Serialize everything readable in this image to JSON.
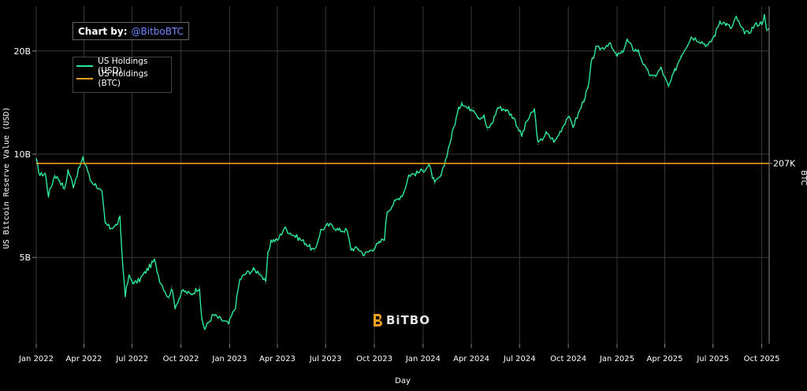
{
  "credit": {
    "label": "Chart by:",
    "handle": "@BitboBTC"
  },
  "brand": {
    "name": "BiTBO",
    "accent_color": "#f0a020"
  },
  "chart_data": {
    "type": "line",
    "title": "",
    "xlabel": "Day",
    "ylabel": "US Bitcoin Reserve Value (USD)",
    "y2label": "BTC",
    "y_scale": "log",
    "ylim": [
      2.8,
      27
    ],
    "xlim": [
      "2022-01-01",
      "2025-10-15"
    ],
    "grid": true,
    "legend_position": "top-left",
    "x_ticks": [
      "Jan 2022",
      "Apr 2022",
      "Jul 2022",
      "Oct 2022",
      "Jan 2023",
      "Apr 2023",
      "Jul 2023",
      "Oct 2023",
      "Jan 2024",
      "Apr 2024",
      "Jul 2024",
      "Oct 2024",
      "Jan 2025",
      "Apr 2025",
      "Jul 2025",
      "Oct 2025"
    ],
    "y_ticks": [
      {
        "value": 5,
        "label": "5B"
      },
      {
        "value": 10,
        "label": "10B"
      },
      {
        "value": 20,
        "label": "20B"
      }
    ],
    "y2_ticks": [
      {
        "value": 9.4,
        "label": "207K"
      }
    ],
    "series": [
      {
        "name": "US Holdings (USD)",
        "color": "#2ee89a",
        "unit": "billion USD",
        "points": [
          [
            "2022-01-01",
            9.6
          ],
          [
            "2022-01-08",
            8.7
          ],
          [
            "2022-01-18",
            8.8
          ],
          [
            "2022-01-24",
            7.6
          ],
          [
            "2022-02-05",
            8.7
          ],
          [
            "2022-02-14",
            8.4
          ],
          [
            "2022-02-24",
            7.9
          ],
          [
            "2022-03-02",
            9.0
          ],
          [
            "2022-03-12",
            8.1
          ],
          [
            "2022-03-24",
            9.2
          ],
          [
            "2022-03-30",
            9.7
          ],
          [
            "2022-04-06",
            9.2
          ],
          [
            "2022-04-13",
            8.4
          ],
          [
            "2022-04-25",
            8.1
          ],
          [
            "2022-05-05",
            7.7
          ],
          [
            "2022-05-11",
            6.3
          ],
          [
            "2022-05-20",
            6.1
          ],
          [
            "2022-06-01",
            6.2
          ],
          [
            "2022-06-08",
            6.5
          ],
          [
            "2022-06-13",
            4.8
          ],
          [
            "2022-06-18",
            3.9
          ],
          [
            "2022-06-25",
            4.4
          ],
          [
            "2022-07-05",
            4.2
          ],
          [
            "2022-07-15",
            4.3
          ],
          [
            "2022-07-29",
            4.6
          ],
          [
            "2022-08-12",
            4.9
          ],
          [
            "2022-08-22",
            4.3
          ],
          [
            "2022-09-08",
            3.8
          ],
          [
            "2022-09-13",
            4.1
          ],
          [
            "2022-09-20",
            3.6
          ],
          [
            "2022-10-05",
            4.0
          ],
          [
            "2022-10-20",
            3.9
          ],
          [
            "2022-11-05",
            4.1
          ],
          [
            "2022-11-09",
            3.3
          ],
          [
            "2022-11-15",
            3.1
          ],
          [
            "2022-12-01",
            3.4
          ],
          [
            "2022-12-15",
            3.3
          ],
          [
            "2022-12-30",
            3.2
          ],
          [
            "2023-01-12",
            3.6
          ],
          [
            "2023-01-20",
            4.3
          ],
          [
            "2023-02-01",
            4.5
          ],
          [
            "2023-02-15",
            4.6
          ],
          [
            "2023-02-28",
            4.5
          ],
          [
            "2023-03-10",
            4.2
          ],
          [
            "2023-03-14",
            5.1
          ],
          [
            "2023-03-20",
            5.6
          ],
          [
            "2023-04-01",
            5.6
          ],
          [
            "2023-04-14",
            6.1
          ],
          [
            "2023-04-25",
            5.9
          ],
          [
            "2023-05-10",
            5.7
          ],
          [
            "2023-05-25",
            5.5
          ],
          [
            "2023-06-10",
            5.2
          ],
          [
            "2023-06-22",
            6.0
          ],
          [
            "2023-07-05",
            6.2
          ],
          [
            "2023-07-14",
            6.2
          ],
          [
            "2023-07-25",
            6.0
          ],
          [
            "2023-08-10",
            6.0
          ],
          [
            "2023-08-18",
            5.3
          ],
          [
            "2023-09-01",
            5.3
          ],
          [
            "2023-09-12",
            5.1
          ],
          [
            "2023-09-28",
            5.3
          ],
          [
            "2023-10-10",
            5.5
          ],
          [
            "2023-10-20",
            5.7
          ],
          [
            "2023-10-25",
            6.8
          ],
          [
            "2023-11-10",
            7.3
          ],
          [
            "2023-11-25",
            7.7
          ],
          [
            "2023-12-05",
            8.7
          ],
          [
            "2023-12-20",
            8.8
          ],
          [
            "2024-01-02",
            9.0
          ],
          [
            "2024-01-12",
            9.3
          ],
          [
            "2024-01-23",
            8.2
          ],
          [
            "2024-02-05",
            8.7
          ],
          [
            "2024-02-15",
            10.0
          ],
          [
            "2024-02-28",
            12.0
          ],
          [
            "2024-03-08",
            13.5
          ],
          [
            "2024-03-14",
            14.2
          ],
          [
            "2024-03-25",
            13.6
          ],
          [
            "2024-04-05",
            13.6
          ],
          [
            "2024-04-15",
            12.8
          ],
          [
            "2024-04-25",
            12.9
          ],
          [
            "2024-05-01",
            11.8
          ],
          [
            "2024-05-10",
            12.3
          ],
          [
            "2024-05-21",
            13.7
          ],
          [
            "2024-06-05",
            13.5
          ],
          [
            "2024-06-20",
            12.8
          ],
          [
            "2024-07-05",
            11.3
          ],
          [
            "2024-07-15",
            12.5
          ],
          [
            "2024-07-29",
            13.5
          ],
          [
            "2024-08-05",
            10.7
          ],
          [
            "2024-08-20",
            11.5
          ],
          [
            "2024-09-06",
            10.9
          ],
          [
            "2024-09-20",
            12.0
          ],
          [
            "2024-09-30",
            12.9
          ],
          [
            "2024-10-10",
            12.1
          ],
          [
            "2024-10-20",
            13.1
          ],
          [
            "2024-10-30",
            14.4
          ],
          [
            "2024-11-08",
            15.7
          ],
          [
            "2024-11-13",
            18.3
          ],
          [
            "2024-11-22",
            20.3
          ],
          [
            "2024-12-05",
            20.4
          ],
          [
            "2024-12-17",
            21.1
          ],
          [
            "2024-12-30",
            19.4
          ],
          [
            "2025-01-10",
            19.7
          ],
          [
            "2025-01-20",
            21.5
          ],
          [
            "2025-01-31",
            20.3
          ],
          [
            "2025-02-10",
            20.0
          ],
          [
            "2025-02-25",
            17.6
          ],
          [
            "2025-03-10",
            16.7
          ],
          [
            "2025-03-25",
            17.8
          ],
          [
            "2025-04-08",
            15.7
          ],
          [
            "2025-04-20",
            17.5
          ],
          [
            "2025-05-01",
            19.3
          ],
          [
            "2025-05-21",
            22.0
          ],
          [
            "2025-06-05",
            21.5
          ],
          [
            "2025-06-22",
            20.7
          ],
          [
            "2025-07-05",
            22.4
          ],
          [
            "2025-07-14",
            24.5
          ],
          [
            "2025-07-25",
            24.0
          ],
          [
            "2025-08-05",
            23.3
          ],
          [
            "2025-08-14",
            25.1
          ],
          [
            "2025-08-25",
            23.0
          ],
          [
            "2025-09-05",
            22.5
          ],
          [
            "2025-09-18",
            23.8
          ],
          [
            "2025-10-01",
            24.2
          ],
          [
            "2025-10-06",
            25.3
          ],
          [
            "2025-10-10",
            22.9
          ],
          [
            "2025-10-15",
            23.3
          ]
        ]
      },
      {
        "name": "US Holdings (BTC)",
        "color": "#f0a020",
        "unit": "BTC",
        "constant": true,
        "points": [
          [
            "2022-01-01",
            9.4
          ],
          [
            "2025-10-15",
            9.4
          ]
        ]
      }
    ]
  }
}
